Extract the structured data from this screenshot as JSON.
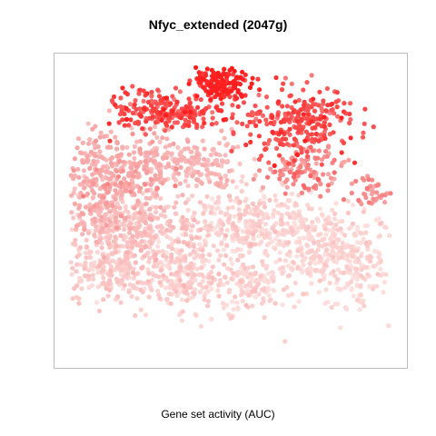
{
  "chart_data": {
    "type": "scatter",
    "title": "Nfyc_extended (2047g)",
    "xlabel": "Gene set activity (AUC)",
    "ylabel": "",
    "grid": false,
    "legend": "none",
    "color_scale": {
      "low": "#fde0de",
      "mid": "#f7a3a3",
      "high": "#ff1f1f"
    },
    "clusters": [
      {
        "cx": 0.47,
        "cy": 0.925,
        "sx": 0.04,
        "sy": 0.025,
        "n": 150,
        "activity": 0.98
      },
      {
        "cx": 0.32,
        "cy": 0.83,
        "sx": 0.08,
        "sy": 0.035,
        "n": 240,
        "activity": 0.82
      },
      {
        "cx": 0.69,
        "cy": 0.8,
        "sx": 0.085,
        "sy": 0.055,
        "n": 260,
        "activity": 0.8
      },
      {
        "cx": 0.73,
        "cy": 0.64,
        "sx": 0.065,
        "sy": 0.04,
        "n": 110,
        "activity": 0.6
      },
      {
        "cx": 0.92,
        "cy": 0.56,
        "sx": 0.03,
        "sy": 0.025,
        "n": 40,
        "activity": 0.55
      },
      {
        "cx": 0.12,
        "cy": 0.6,
        "sx": 0.06,
        "sy": 0.08,
        "n": 280,
        "activity": 0.42
      },
      {
        "cx": 0.26,
        "cy": 0.65,
        "sx": 0.05,
        "sy": 0.05,
        "n": 140,
        "activity": 0.4
      },
      {
        "cx": 0.42,
        "cy": 0.66,
        "sx": 0.06,
        "sy": 0.045,
        "n": 120,
        "activity": 0.33
      },
      {
        "cx": 0.2,
        "cy": 0.44,
        "sx": 0.09,
        "sy": 0.07,
        "n": 360,
        "activity": 0.22
      },
      {
        "cx": 0.15,
        "cy": 0.3,
        "sx": 0.07,
        "sy": 0.06,
        "n": 200,
        "activity": 0.14
      },
      {
        "cx": 0.36,
        "cy": 0.3,
        "sx": 0.07,
        "sy": 0.07,
        "n": 240,
        "activity": 0.12
      },
      {
        "cx": 0.52,
        "cy": 0.46,
        "sx": 0.07,
        "sy": 0.06,
        "n": 200,
        "activity": 0.11
      },
      {
        "cx": 0.72,
        "cy": 0.4,
        "sx": 0.1,
        "sy": 0.07,
        "n": 330,
        "activity": 0.07
      },
      {
        "cx": 0.86,
        "cy": 0.32,
        "sx": 0.06,
        "sy": 0.07,
        "n": 180,
        "activity": 0.05
      },
      {
        "cx": 0.56,
        "cy": 0.25,
        "sx": 0.06,
        "sy": 0.04,
        "n": 120,
        "activity": 0.08
      }
    ]
  }
}
